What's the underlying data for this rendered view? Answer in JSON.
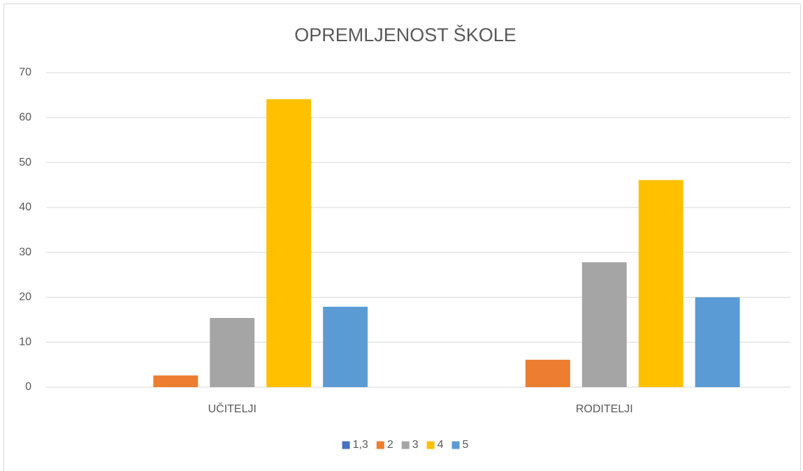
{
  "chart_data": {
    "type": "bar",
    "title": "OPREMLJENOST ŠKOLE",
    "categories": [
      "UČITELJI",
      "RODITELJI"
    ],
    "series": [
      {
        "name": "1,3",
        "color": "#4472c4",
        "values": [
          0,
          0
        ]
      },
      {
        "name": "2",
        "color": "#ed7d31",
        "values": [
          2.6,
          6.1
        ]
      },
      {
        "name": "3",
        "color": "#a5a5a5",
        "values": [
          15.4,
          27.8
        ]
      },
      {
        "name": "4",
        "color": "#ffc000",
        "values": [
          64.1,
          46.1
        ]
      },
      {
        "name": "5",
        "color": "#5b9bd5",
        "values": [
          17.9,
          20
        ]
      }
    ],
    "ylim": [
      0,
      70
    ],
    "yticks": [
      0,
      10,
      20,
      30,
      40,
      50,
      60,
      70
    ],
    "grid": true,
    "legend": "bottom"
  }
}
